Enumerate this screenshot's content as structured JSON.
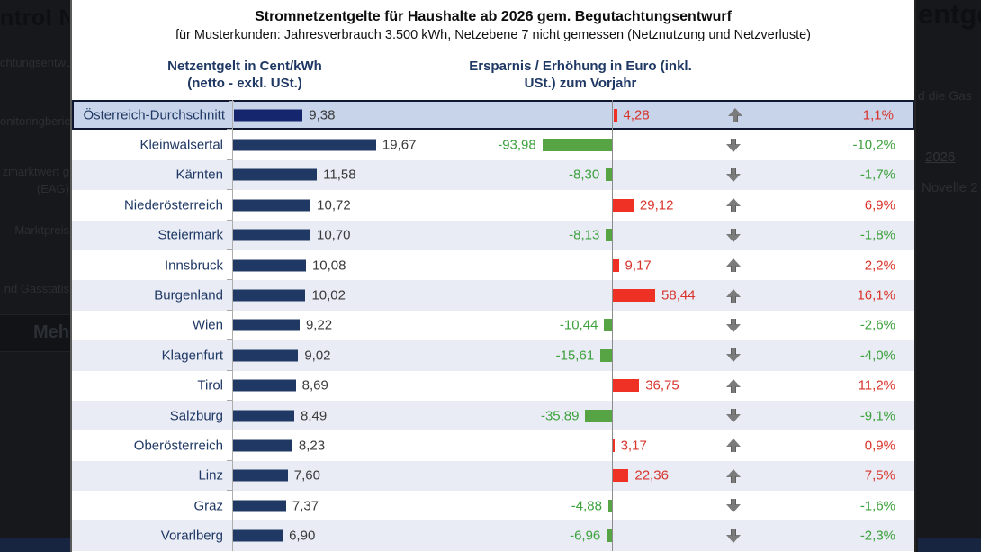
{
  "background": {
    "left": {
      "heading_fragment": "ntrol Ne",
      "item1": "chtungsentwü",
      "item2": "onitoringberic",
      "item3": "zmarktwert g",
      "item4": "(EAG)",
      "item5": "Marktpreis",
      "item6": "nd Gasstatis",
      "button_label": "Meh"
    },
    "right": {
      "heading_fragment": "entge",
      "item1": "d die Gas",
      "link_2026": "2026",
      "item3": "Novelle 2"
    }
  },
  "chart_data": {
    "type": "bar",
    "title": "Stromnetzentgelte für Haushalte ab 2026 gem. Begutachtungsentwurf",
    "subtitle": "für Musterkunden: Jahresverbrauch 3.500 kWh, Netzebene 7 nicht gemessen (Netznutzung und Netzverluste)",
    "col1_header_line1": "Netzentgelt in Cent/kWh",
    "col1_header_line2": "(netto - exkl. USt.)",
    "col2_header_line1": "Ersparnis / Erhöhung in Euro (inkl.",
    "col2_header_line2": "USt.) zum Vorjahr",
    "legend_position": "none",
    "grid": "off",
    "colors": {
      "bar_navy": "#1f3864",
      "bar_navy_highlight": "#15266e",
      "bar_green": "#57a445",
      "bar_red": "#ee3124",
      "text_green": "#3da13d",
      "text_red": "#d8352c",
      "arrow_gray": "#7b7b7b",
      "row_alt": "#e9ecf5",
      "row_highlight": "#c8d4e9",
      "header_navy": "#1f3864"
    },
    "rows": [
      {
        "region": "Österreich-Durchschnitt",
        "cent_label": "9,38",
        "cent": 9.38,
        "euro_label": "4,28",
        "euro": 4.28,
        "trend": "up",
        "pct_label": "1,1%",
        "highlight": true
      },
      {
        "region": "Kleinwalsertal",
        "cent_label": "19,67",
        "cent": 19.67,
        "euro_label": "-93,98",
        "euro": -93.98,
        "trend": "down",
        "pct_label": "-10,2%"
      },
      {
        "region": "Kärnten",
        "cent_label": "11,58",
        "cent": 11.58,
        "euro_label": "-8,30",
        "euro": -8.3,
        "trend": "down",
        "pct_label": "-1,7%"
      },
      {
        "region": "Niederösterreich",
        "cent_label": "10,72",
        "cent": 10.72,
        "euro_label": "29,12",
        "euro": 29.12,
        "trend": "up",
        "pct_label": "6,9%"
      },
      {
        "region": "Steiermark",
        "cent_label": "10,70",
        "cent": 10.7,
        "euro_label": "-8,13",
        "euro": -8.13,
        "trend": "down",
        "pct_label": "-1,8%"
      },
      {
        "region": "Innsbruck",
        "cent_label": "10,08",
        "cent": 10.08,
        "euro_label": "9,17",
        "euro": 9.17,
        "trend": "up",
        "pct_label": "2,2%"
      },
      {
        "region": "Burgenland",
        "cent_label": "10,02",
        "cent": 10.02,
        "euro_label": "58,44",
        "euro": 58.44,
        "trend": "up",
        "pct_label": "16,1%"
      },
      {
        "region": "Wien",
        "cent_label": "9,22",
        "cent": 9.22,
        "euro_label": "-10,44",
        "euro": -10.44,
        "trend": "down",
        "pct_label": "-2,6%"
      },
      {
        "region": "Klagenfurt",
        "cent_label": "9,02",
        "cent": 9.02,
        "euro_label": "-15,61",
        "euro": -15.61,
        "trend": "down",
        "pct_label": "-4,0%"
      },
      {
        "region": "Tirol",
        "cent_label": "8,69",
        "cent": 8.69,
        "euro_label": "36,75",
        "euro": 36.75,
        "trend": "up",
        "pct_label": "11,2%"
      },
      {
        "region": "Salzburg",
        "cent_label": "8,49",
        "cent": 8.49,
        "euro_label": "-35,89",
        "euro": -35.89,
        "trend": "down",
        "pct_label": "-9,1%"
      },
      {
        "region": "Oberösterreich",
        "cent_label": "8,23",
        "cent": 8.23,
        "euro_label": "3,17",
        "euro": 3.17,
        "trend": "up",
        "pct_label": "0,9%"
      },
      {
        "region": "Linz",
        "cent_label": "7,60",
        "cent": 7.6,
        "euro_label": "22,36",
        "euro": 22.36,
        "trend": "up",
        "pct_label": "7,5%"
      },
      {
        "region": "Graz",
        "cent_label": "7,37",
        "cent": 7.37,
        "euro_label": "-4,88",
        "euro": -4.88,
        "trend": "down",
        "pct_label": "-1,6%"
      },
      {
        "region": "Vorarlberg",
        "cent_label": "6,90",
        "cent": 6.9,
        "euro_label": "-6,96",
        "euro": -6.96,
        "trend": "down",
        "pct_label": "-2,3%"
      }
    ]
  }
}
